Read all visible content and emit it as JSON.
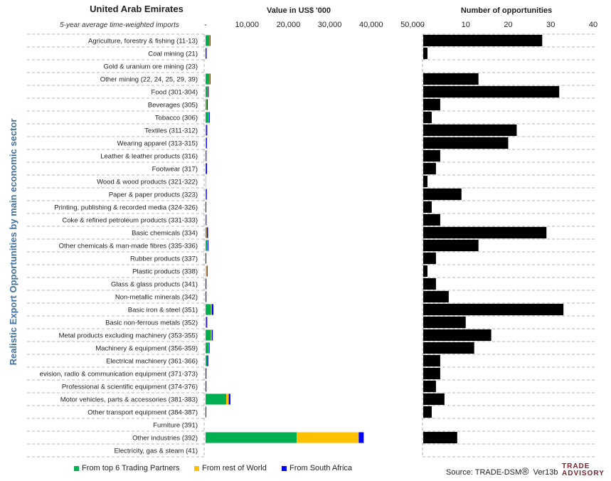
{
  "header": {
    "country": "United Arab Emirates",
    "subtitle": "5-year average time-weighted imports",
    "value_title": "Value in US$ '000",
    "count_title": "Number of opportunities",
    "y_axis_label": "Realistic Export Opportunities by main economic sector"
  },
  "colors": {
    "top6": "#00b050",
    "rest": "#ffc000",
    "sa": "#0000ff",
    "count_bar": "#000000",
    "y_label": "#44719f",
    "grid": "#9aa0a6"
  },
  "legend": {
    "top6": "From top 6 Trading Partners",
    "rest": "From rest of World",
    "sa": "From South Africa"
  },
  "source": {
    "text": "Source: TRADE-DSM",
    "mark": "®",
    "version": "Ver13b"
  },
  "logo": {
    "line1": "TRADE",
    "line2": "ADVISORY"
  },
  "chart_data": [
    {
      "type": "bar",
      "orientation": "horizontal",
      "stacked": true,
      "title": "Value in US$ '000",
      "xlim": [
        0,
        50000
      ],
      "xticks": [
        "-",
        "10,000",
        "20,000",
        "30,000",
        "40,000",
        "50,000"
      ],
      "categories": [
        "Agriculture, forestry & fishing (11-13)",
        "Coal mining (21)",
        "Gold & uranium ore mining (23)",
        "Other mining (22, 24, 25, 29, 39)",
        "Food (301-304)",
        "Beverages (305)",
        "Tobacco (306)",
        "Textiles (311-312)",
        "Wearing apparel (313-315)",
        "Leather & leather products (316)",
        "Footwear (317)",
        "Wood & wood products (321-322)",
        "Paper & paper products (323)",
        "Printing, publishing & recorded media (324-326)",
        "Coke & refined petroleum products (331-333)",
        "Basic chemicals (334)",
        "Other chemicals & man-made fibres (335-336)",
        "Rubber products (337)",
        "Plastic products (338)",
        "Glass & glass products (341)",
        "Non-metallic minerals (342)",
        "Basic iron & steel (351)",
        "Basic non-ferrous metals (352)",
        "Metal products excluding machinery (353-355)",
        "Machinery & equipment (356-359)",
        "Electrical machinery (361-366)",
        "evision, radio & communication equipment (371-373)",
        "Professional & scientific equipment (374-376)",
        "Motor vehicles, parts & accessories (381-383)",
        "Other transport equipment (384-387)",
        "Furniture (391)",
        "Other industries (392)",
        "Electricity, gas & steam (41)"
      ],
      "series": [
        {
          "name": "From top 6 Trading Partners",
          "values": [
            900,
            0,
            0,
            900,
            500,
            300,
            700,
            150,
            100,
            0,
            0,
            0,
            50,
            0,
            0,
            200,
            400,
            0,
            0,
            0,
            0,
            1300,
            150,
            1300,
            700,
            350,
            0,
            0,
            5000,
            0,
            0,
            22000,
            0
          ]
        },
        {
          "name": "From rest of World",
          "values": [
            100,
            0,
            0,
            100,
            100,
            50,
            100,
            50,
            50,
            50,
            50,
            100,
            50,
            0,
            50,
            100,
            100,
            0,
            300,
            0,
            0,
            200,
            50,
            200,
            100,
            50,
            0,
            0,
            600,
            0,
            0,
            15000,
            0
          ]
        },
        {
          "name": "From South Africa",
          "values": [
            150,
            250,
            0,
            150,
            150,
            150,
            200,
            200,
            150,
            50,
            300,
            0,
            200,
            100,
            100,
            300,
            200,
            100,
            50,
            200,
            200,
            400,
            200,
            250,
            150,
            250,
            200,
            200,
            400,
            100,
            0,
            1200,
            0
          ]
        }
      ]
    },
    {
      "type": "bar",
      "orientation": "horizontal",
      "title": "Number of opportunities",
      "xlim": [
        0,
        40
      ],
      "xticks": [
        "-",
        "10",
        "20",
        "30",
        "40"
      ],
      "series": [
        {
          "values": [
            28,
            1,
            0,
            13,
            32,
            4,
            2,
            22,
            20,
            4,
            3,
            1,
            9,
            2,
            4,
            29,
            13,
            3,
            1,
            3,
            6,
            33,
            10,
            16,
            12,
            4,
            4,
            3,
            5,
            2,
            0,
            8,
            0
          ]
        }
      ]
    }
  ]
}
